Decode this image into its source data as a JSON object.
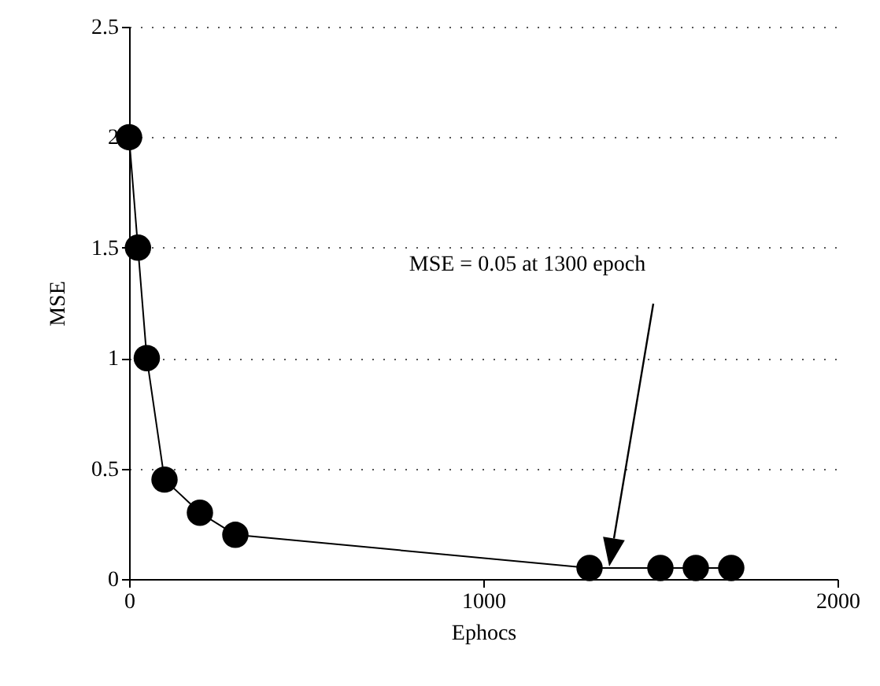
{
  "chart_data": {
    "type": "line",
    "xlabel": "Ephocs",
    "ylabel": "MSE",
    "x": [
      0,
      25,
      50,
      100,
      200,
      300,
      1300,
      1500,
      1600,
      1700
    ],
    "series": [
      {
        "color": "#000000",
        "values": [
          2,
          1.5,
          1,
          0.45,
          0.3,
          0.2,
          0.05,
          0.05,
          0.05,
          0.05
        ]
      }
    ],
    "xlim": [
      0,
      2000
    ],
    "xticks": [
      0,
      1000,
      2000
    ],
    "ylim": [
      0,
      2.5
    ],
    "yticks": [
      0,
      0.5,
      1,
      1.5,
      2,
      2.5
    ],
    "grid": "y",
    "marker": "circle",
    "line_style": "solid",
    "annotations": [
      "MSE = 0.05 at 1300 epoch"
    ]
  }
}
